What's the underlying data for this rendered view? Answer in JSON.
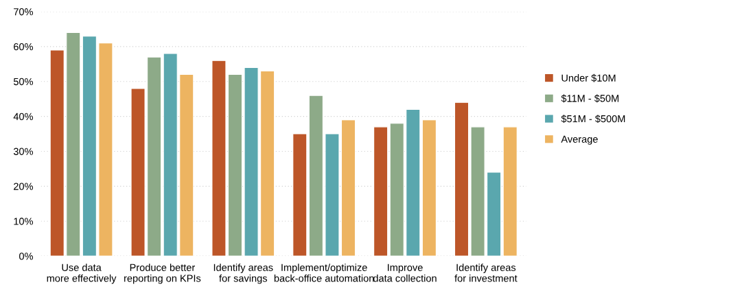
{
  "chart_data": {
    "type": "bar",
    "categories": [
      "Use data\nmore effectively",
      "Produce better\nreporting on KPIs",
      "Identify areas\nfor savings",
      "Implement/optimize\nback-office automation",
      "Improve\ndata collection",
      "Identify areas\nfor investment"
    ],
    "series": [
      {
        "name": "Under $10M",
        "color": "#bd5628",
        "values": [
          59,
          48,
          56,
          35,
          37,
          44
        ]
      },
      {
        "name": "$11M - $50M",
        "color": "#8daa88",
        "values": [
          64,
          57,
          52,
          46,
          38,
          37
        ]
      },
      {
        "name": "$51M - $500M",
        "color": "#5aa7ae",
        "values": [
          63,
          58,
          54,
          35,
          42,
          24
        ]
      },
      {
        "name": "Average",
        "color": "#edb461",
        "values": [
          61,
          52,
          53,
          39,
          39,
          37
        ]
      }
    ],
    "ylim": [
      0,
      70
    ],
    "yticks": [
      {
        "value": 0,
        "label": "0%"
      },
      {
        "value": 10,
        "label": "10%"
      },
      {
        "value": 20,
        "label": "20%"
      },
      {
        "value": 30,
        "label": "30%"
      },
      {
        "value": 40,
        "label": "40%"
      },
      {
        "value": 50,
        "label": "50%"
      },
      {
        "value": 60,
        "label": "60%"
      },
      {
        "value": 70,
        "label": "70%"
      }
    ],
    "grid": "y",
    "legend": "right"
  }
}
